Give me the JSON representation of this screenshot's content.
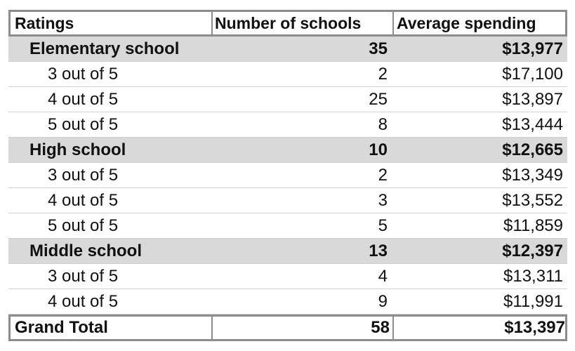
{
  "table": {
    "header": [
      "Ratings",
      "Number of schools",
      "Average spending"
    ],
    "groups": [
      {
        "name": "Elementary school",
        "count": 35,
        "spending": "$13,977",
        "rows": [
          [
            "3 out of 5",
            2,
            "$17,100"
          ],
          [
            "4 out of 5",
            25,
            "$13,897"
          ],
          [
            "5 out of 5",
            8,
            "$13,444"
          ]
        ]
      },
      {
        "name": "High school",
        "count": 10,
        "spending": "$12,665",
        "rows": [
          [
            "3 out of 5",
            2,
            "$13,349"
          ],
          [
            "4 out of 5",
            3,
            "$13,552"
          ],
          [
            "5 out of 5",
            5,
            "$11,859"
          ]
        ]
      },
      {
        "name": "Middle school",
        "count": 13,
        "spending": "$12,397",
        "rows": [
          [
            "3 out of 5",
            4,
            "$13,311"
          ],
          [
            "4 out of 5",
            9,
            "$11,991"
          ]
        ]
      }
    ],
    "total": {
      "name": "Grand Total",
      "count": 58,
      "spending": "$13,397"
    }
  }
}
